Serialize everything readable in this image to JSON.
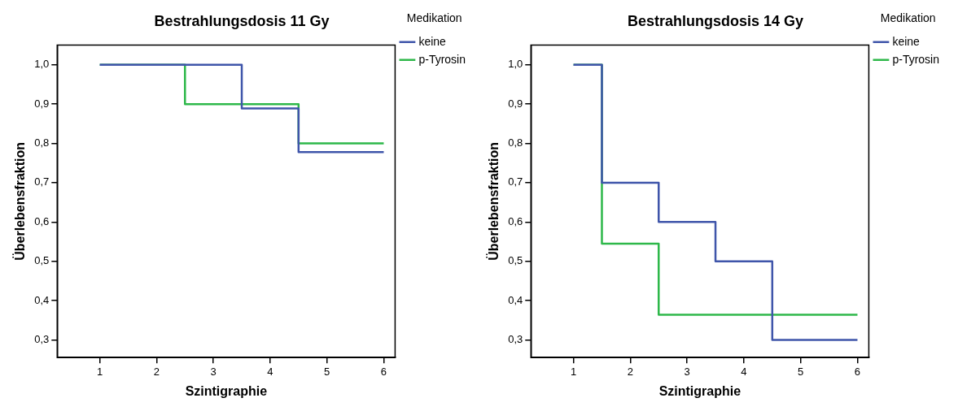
{
  "chart_data": [
    {
      "type": "step",
      "title": "Bestrahlungsdosis 11 Gy",
      "xlabel": "Szintigraphie",
      "ylabel": "Überlebensfraktion",
      "legend_title": "Medikation",
      "legend": "right",
      "xlim": [
        0.25,
        6.2
      ],
      "xticks": [
        1,
        2,
        3,
        4,
        5,
        6
      ],
      "ylim": [
        0.255,
        1.05
      ],
      "yticks": [
        {
          "value": 0.3,
          "label": "0,3"
        },
        {
          "value": 0.4,
          "label": "0,4"
        },
        {
          "value": 0.5,
          "label": "0,5"
        },
        {
          "value": 0.6,
          "label": "0,6"
        },
        {
          "value": 0.7,
          "label": "0,7"
        },
        {
          "value": 0.8,
          "label": "0,8"
        },
        {
          "value": 0.9,
          "label": "0,9"
        },
        {
          "value": 1.0,
          "label": "1,0"
        }
      ],
      "grid": false,
      "series": [
        {
          "name": "keine",
          "color": "#3f55aa",
          "x": [
            1,
            3.5,
            4.5,
            6
          ],
          "values": [
            1.0,
            0.889,
            0.778,
            0.778
          ]
        },
        {
          "name": "p-Tyrosin",
          "color": "#2eb84a",
          "x": [
            1,
            2.5,
            4.5,
            6
          ],
          "values": [
            1.0,
            0.9,
            0.8,
            0.8
          ]
        }
      ]
    },
    {
      "type": "step",
      "title": "Bestrahlungsdosis 14 Gy",
      "xlabel": "Szintigraphie",
      "ylabel": "Überlebensfraktion",
      "legend_title": "Medikation",
      "legend": "right",
      "xlim": [
        0.25,
        6.2
      ],
      "xticks": [
        1,
        2,
        3,
        4,
        5,
        6
      ],
      "ylim": [
        0.255,
        1.05
      ],
      "yticks": [
        {
          "value": 0.3,
          "label": "0,3"
        },
        {
          "value": 0.4,
          "label": "0,4"
        },
        {
          "value": 0.5,
          "label": "0,5"
        },
        {
          "value": 0.6,
          "label": "0,6"
        },
        {
          "value": 0.7,
          "label": "0,7"
        },
        {
          "value": 0.8,
          "label": "0,8"
        },
        {
          "value": 0.9,
          "label": "0,9"
        },
        {
          "value": 1.0,
          "label": "1,0"
        }
      ],
      "grid": false,
      "series": [
        {
          "name": "keine",
          "color": "#3f55aa",
          "x": [
            1,
            1.5,
            2.5,
            3.5,
            4.5,
            6
          ],
          "values": [
            1.0,
            0.7,
            0.6,
            0.5,
            0.3,
            0.3
          ]
        },
        {
          "name": "p-Tyrosin",
          "color": "#2eb84a",
          "x": [
            1,
            1.5,
            2.5,
            6
          ],
          "values": [
            1.0,
            0.545,
            0.364,
            0.364
          ]
        }
      ]
    }
  ]
}
